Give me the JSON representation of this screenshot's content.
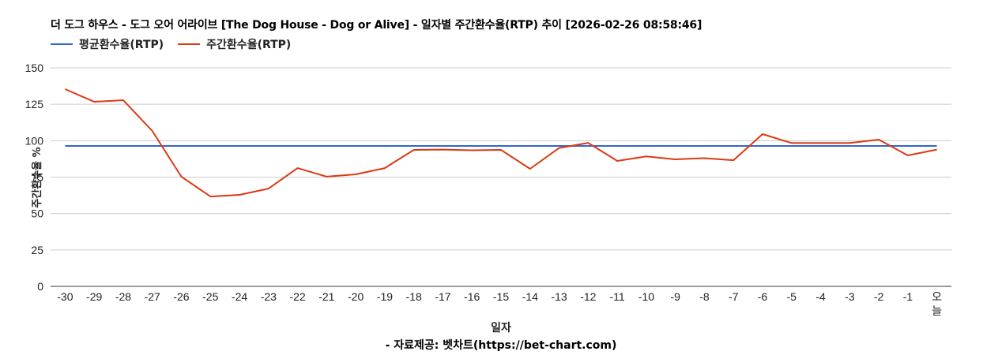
{
  "header": {
    "title": "더 도그 하우스 - 도그 오어 어라이브 [The Dog House - Dog or Alive] - 일자별 주간환수율(RTP) 추이 [2026-02-26 08:58:46]"
  },
  "legend": [
    {
      "label": "평균환수율(RTP)",
      "color": "#3366cc"
    },
    {
      "label": "주간환수율(RTP)",
      "color": "#dc3912"
    }
  ],
  "axes": {
    "ylabel": "주간환수율 %",
    "xlabel": "일자"
  },
  "footer": {
    "credit": "- 자료제공: 벳차트(https://bet-chart.com)"
  },
  "chart_data": {
    "type": "line",
    "title": "더 도그 하우스 - 도그 오어 어라이브 [The Dog House - Dog or Alive] - 일자별 주간환수율(RTP) 추이 [2026-02-26 08:58:46]",
    "xlabel": "일자",
    "ylabel": "주간환수율 %",
    "ylim": [
      0,
      150
    ],
    "yticks": [
      0,
      25,
      50,
      75,
      100,
      125,
      150
    ],
    "grid": true,
    "legend_position": "top",
    "categories": [
      "-30",
      "-29",
      "-28",
      "-27",
      "-26",
      "-25",
      "-24",
      "-23",
      "-22",
      "-21",
      "-20",
      "-19",
      "-18",
      "-17",
      "-16",
      "-15",
      "-14",
      "-13",
      "-12",
      "-11",
      "-10",
      "-9",
      "-8",
      "-7",
      "-6",
      "-5",
      "-4",
      "-3",
      "-2",
      "-1",
      "오늘"
    ],
    "series": [
      {
        "name": "평균환수율(RTP)",
        "color": "#3366cc",
        "values": [
          96.4,
          96.4,
          96.4,
          96.4,
          96.4,
          96.4,
          96.4,
          96.4,
          96.4,
          96.4,
          96.4,
          96.4,
          96.4,
          96.4,
          96.4,
          96.4,
          96.4,
          96.4,
          96.4,
          96.4,
          96.4,
          96.4,
          96.4,
          96.4,
          96.4,
          96.4,
          96.4,
          96.4,
          96.4,
          96.4,
          96.4
        ]
      },
      {
        "name": "주간환수율(RTP)",
        "color": "#dc3912",
        "values": [
          135.4,
          126.7,
          127.8,
          106.7,
          75.3,
          61.7,
          62.8,
          67.1,
          81.2,
          75.3,
          76.9,
          81.2,
          93.7,
          93.9,
          93.4,
          93.7,
          80.7,
          95.0,
          98.5,
          86.1,
          89.2,
          87.2,
          88.0,
          86.6,
          104.5,
          98.4,
          98.4,
          98.4,
          100.7,
          89.9,
          93.9
        ]
      }
    ],
    "credit": "- 자료제공: 벳차트(https://bet-chart.com)"
  }
}
